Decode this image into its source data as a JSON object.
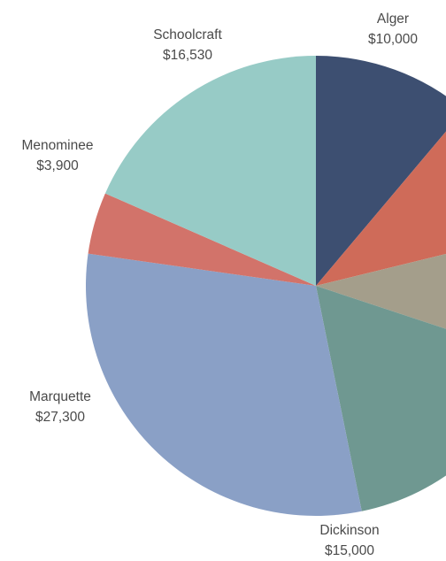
{
  "chart_data": {
    "type": "pie",
    "title": "",
    "start_angle": "12 o'clock",
    "direction": "clockwise",
    "slices": [
      {
        "key": "alger",
        "name": "Alger",
        "value": 10000,
        "value_label": "$10,000",
        "color": "#3d4f71"
      },
      {
        "key": "unnamed-red",
        "name": "",
        "value": 9000,
        "value_label": "",
        "color": "#cf6b59"
      },
      {
        "key": "unnamed-tan",
        "name": "",
        "value": 8000,
        "value_label": "",
        "color": "#a49e8b"
      },
      {
        "key": "dickinson",
        "name": "Dickinson",
        "value": 15000,
        "value_label": "$15,000",
        "color": "#6f9891"
      },
      {
        "key": "marquette",
        "name": "Marquette",
        "value": 27300,
        "value_label": "$27,300",
        "color": "#8aa0c6"
      },
      {
        "key": "menominee",
        "name": "Menominee",
        "value": 3900,
        "value_label": "$3,900",
        "color": "#d2736a"
      },
      {
        "key": "schoolcraft",
        "name": "Schoolcraft",
        "value": 16530,
        "value_label": "$16,530",
        "color": "#97cbc6"
      }
    ]
  }
}
